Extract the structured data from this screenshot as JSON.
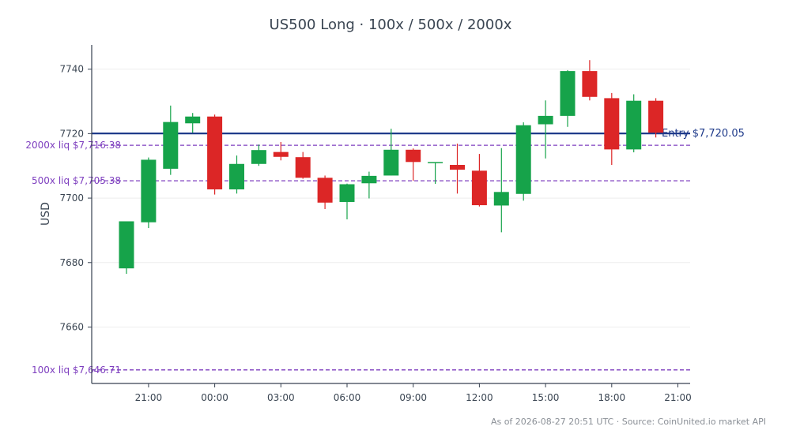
{
  "title": "US500 Long · 100x / 500x / 2000x",
  "footer": "As of 2026-08-27 20:51 UTC · Source: CoinUnited.io market API",
  "colors": {
    "up": "#16a34a",
    "down": "#dc2626",
    "entry": "#1e3a8a",
    "liq": "#7e3fbf",
    "axis": "#374151",
    "grid": "#eeeeee",
    "text": "#3a4552"
  },
  "chart_data": {
    "type": "candlestick",
    "ylabel": "USD",
    "ylim": [
      7642.5,
      7747.5
    ],
    "yticks": [
      7660,
      7680,
      7700,
      7720,
      7740
    ],
    "xticks": [
      "21:00",
      "00:00",
      "03:00",
      "06:00",
      "09:00",
      "12:00",
      "15:00",
      "18:00",
      "21:00"
    ],
    "grid": "horizontal",
    "candles": [
      {
        "time": "20:00",
        "open": 7678.2,
        "high": 7692.8,
        "low": 7676.5,
        "close": 7692.8
      },
      {
        "time": "21:00",
        "open": 7692.5,
        "high": 7712.6,
        "low": 7690.7,
        "close": 7711.9
      },
      {
        "time": "22:00",
        "open": 7709.1,
        "high": 7728.7,
        "low": 7707.2,
        "close": 7723.6
      },
      {
        "time": "23:00",
        "open": 7723.2,
        "high": 7726.4,
        "low": 7720.3,
        "close": 7725.3
      },
      {
        "time": "00:00",
        "open": 7725.3,
        "high": 7725.9,
        "low": 7701.1,
        "close": 7702.7
      },
      {
        "time": "01:00",
        "open": 7702.7,
        "high": 7713.2,
        "low": 7701.4,
        "close": 7710.6
      },
      {
        "time": "02:00",
        "open": 7710.6,
        "high": 7716.6,
        "low": 7710.0,
        "close": 7714.9
      },
      {
        "time": "03:00",
        "open": 7714.3,
        "high": 7717.4,
        "low": 7711.7,
        "close": 7712.8
      },
      {
        "time": "04:00",
        "open": 7712.7,
        "high": 7714.3,
        "low": 7706.0,
        "close": 7706.3
      },
      {
        "time": "05:00",
        "open": 7706.3,
        "high": 7707.0,
        "low": 7696.6,
        "close": 7698.6
      },
      {
        "time": "06:00",
        "open": 7698.8,
        "high": 7704.5,
        "low": 7693.4,
        "close": 7704.3
      },
      {
        "time": "07:00",
        "open": 7704.6,
        "high": 7708.2,
        "low": 7699.9,
        "close": 7706.9
      },
      {
        "time": "08:00",
        "open": 7707.0,
        "high": 7721.5,
        "low": 7707.0,
        "close": 7715.0
      },
      {
        "time": "09:00",
        "open": 7715.0,
        "high": 7715.4,
        "low": 7705.4,
        "close": 7711.2
      },
      {
        "time": "10:00",
        "open": 7710.9,
        "high": 7710.9,
        "low": 7704.4,
        "close": 7711.2
      },
      {
        "time": "11:00",
        "open": 7710.3,
        "high": 7716.9,
        "low": 7701.4,
        "close": 7708.8
      },
      {
        "time": "12:00",
        "open": 7708.5,
        "high": 7713.7,
        "low": 7697.4,
        "close": 7697.8
      },
      {
        "time": "13:00",
        "open": 7697.7,
        "high": 7715.5,
        "low": 7689.4,
        "close": 7701.9
      },
      {
        "time": "14:00",
        "open": 7701.3,
        "high": 7723.5,
        "low": 7699.2,
        "close": 7722.6
      },
      {
        "time": "15:00",
        "open": 7722.9,
        "high": 7730.3,
        "low": 7712.3,
        "close": 7725.5
      },
      {
        "time": "16:00",
        "open": 7725.5,
        "high": 7739.7,
        "low": 7722.1,
        "close": 7739.4
      },
      {
        "time": "17:00",
        "open": 7739.4,
        "high": 7742.8,
        "low": 7730.3,
        "close": 7731.4
      },
      {
        "time": "18:00",
        "open": 7731.0,
        "high": 7732.6,
        "low": 7710.3,
        "close": 7715.1
      },
      {
        "time": "19:00",
        "open": 7715.1,
        "high": 7732.2,
        "low": 7714.2,
        "close": 7730.2
      },
      {
        "time": "20:00",
        "open": 7730.2,
        "high": 7731.0,
        "low": 7718.8,
        "close": 7720.3
      }
    ],
    "entry": {
      "value": 7720.05,
      "label": "Entry $7,720.05"
    },
    "liquidations": [
      {
        "value": 7716.38,
        "label": "2000x liq $7,716.38"
      },
      {
        "value": 7705.38,
        "label": "500x liq $7,705.38"
      },
      {
        "value": 7646.71,
        "label": "100x liq $7,646.71"
      }
    ]
  }
}
